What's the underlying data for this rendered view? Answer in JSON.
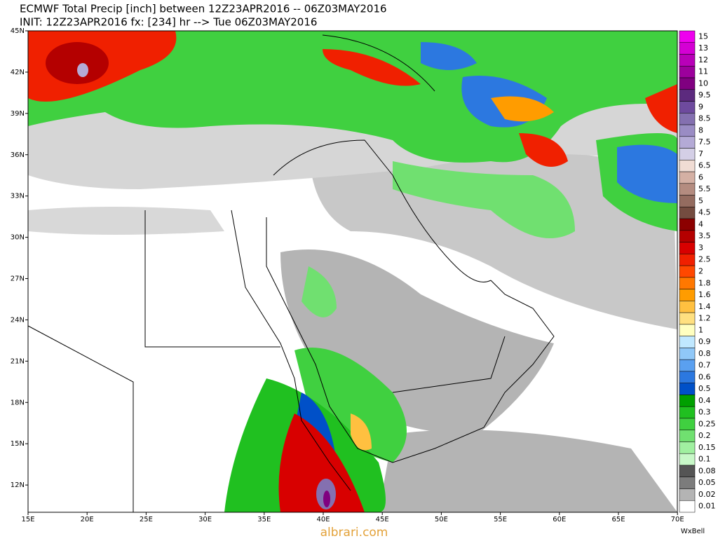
{
  "header": {
    "line1": "ECMWF Total Precip [inch] between 12Z23APR2016 -- 06Z03MAY2016",
    "line2": "INIT: 12Z23APR2016 fx: [234] hr --> Tue 06Z03MAY2016"
  },
  "map": {
    "lat_labels": [
      "45N",
      "42N",
      "39N",
      "36N",
      "33N",
      "30N",
      "27N",
      "24N",
      "21N",
      "18N",
      "15N",
      "12N"
    ],
    "lon_labels": [
      "15E",
      "20E",
      "25E",
      "30E",
      "35E",
      "40E",
      "45E",
      "50E",
      "55E",
      "60E",
      "65E",
      "70E"
    ]
  },
  "legend": {
    "items": [
      {
        "label": "15",
        "color": "#ee00ee"
      },
      {
        "label": "13",
        "color": "#d400d4"
      },
      {
        "label": "12",
        "color": "#b800b8"
      },
      {
        "label": "11",
        "color": "#9c009c"
      },
      {
        "label": "10",
        "color": "#800080"
      },
      {
        "label": "9.5",
        "color": "#5c2a7e"
      },
      {
        "label": "9",
        "color": "#6e4a9e"
      },
      {
        "label": "8.5",
        "color": "#8470b0"
      },
      {
        "label": "8",
        "color": "#9a8cc4"
      },
      {
        "label": "7.5",
        "color": "#b4aad6"
      },
      {
        "label": "7",
        "color": "#d4cfe6"
      },
      {
        "label": "6.5",
        "color": "#f0dcd4"
      },
      {
        "label": "6",
        "color": "#d4b0a4"
      },
      {
        "label": "5.5",
        "color": "#b48c80"
      },
      {
        "label": "5",
        "color": "#946c60"
      },
      {
        "label": "4.5",
        "color": "#744c40"
      },
      {
        "label": "4",
        "color": "#8c0000"
      },
      {
        "label": "3.5",
        "color": "#b40000"
      },
      {
        "label": "3",
        "color": "#d80000"
      },
      {
        "label": "2.5",
        "color": "#f02000"
      },
      {
        "label": "2",
        "color": "#ff4800"
      },
      {
        "label": "1.8",
        "color": "#ff7800"
      },
      {
        "label": "1.6",
        "color": "#ff9c00"
      },
      {
        "label": "1.4",
        "color": "#ffc040"
      },
      {
        "label": "1.2",
        "color": "#ffe080"
      },
      {
        "label": "1",
        "color": "#ffffc0"
      },
      {
        "label": "0.9",
        "color": "#c0e8ff"
      },
      {
        "label": "0.8",
        "color": "#90c8f8"
      },
      {
        "label": "0.7",
        "color": "#5aa0f0"
      },
      {
        "label": "0.6",
        "color": "#2c78e0"
      },
      {
        "label": "0.5",
        "color": "#0050c8"
      },
      {
        "label": "0.4",
        "color": "#00a000"
      },
      {
        "label": "0.3",
        "color": "#20c020"
      },
      {
        "label": "0.25",
        "color": "#40d040"
      },
      {
        "label": "0.2",
        "color": "#70e070"
      },
      {
        "label": "0.15",
        "color": "#a0f0a0"
      },
      {
        "label": "0.1",
        "color": "#c8f8c8"
      },
      {
        "label": "0.08",
        "color": "#555555"
      },
      {
        "label": "0.05",
        "color": "#7c7c7c"
      },
      {
        "label": "0.02",
        "color": "#b4b4b4"
      },
      {
        "label": "0.01",
        "color": "#ffffff"
      }
    ]
  },
  "footer": {
    "watermark": "albrari.com",
    "credit": "WxBell"
  }
}
